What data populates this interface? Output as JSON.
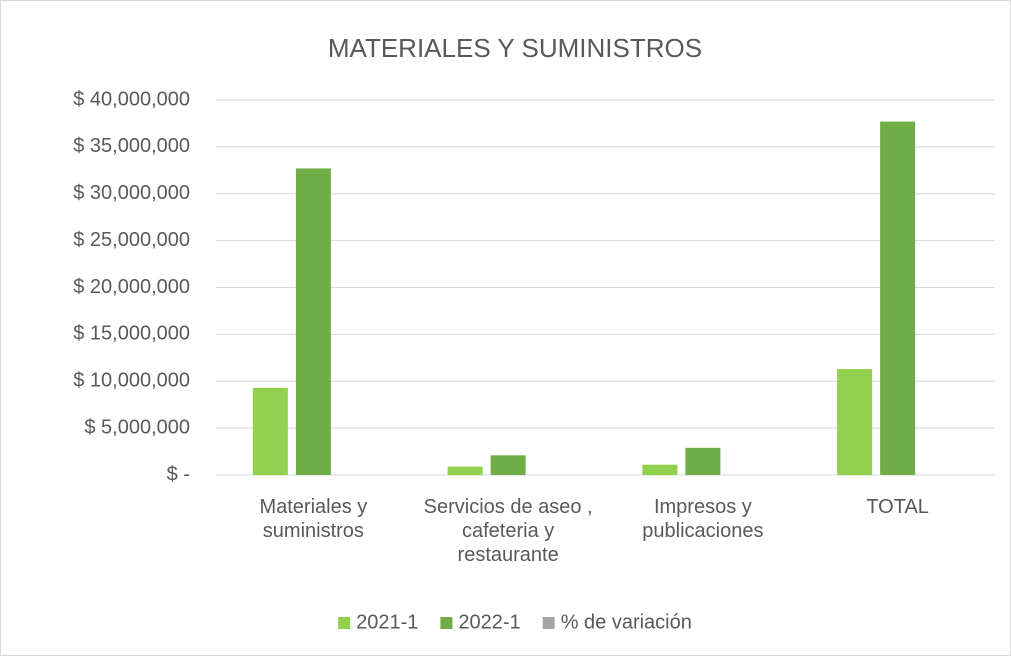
{
  "chart_data": {
    "type": "bar",
    "title": "MATERIALES Y SUMINISTROS",
    "categories": [
      "Materiales y suministros",
      "Servicios de aseo , cafeteria y restaurante",
      "Impresos y publicaciones",
      "TOTAL"
    ],
    "series": [
      {
        "name": "2021-1",
        "color": "#92d050",
        "values": [
          9300000,
          900000,
          1100000,
          11300000
        ]
      },
      {
        "name": "2022-1",
        "color": "#70ad47",
        "values": [
          32700000,
          2100000,
          2900000,
          37700000
        ]
      },
      {
        "name": "% de variación",
        "color": "#a5a5a5",
        "values": [
          0,
          0,
          0,
          0
        ]
      }
    ],
    "ylim": [
      0,
      40000000
    ],
    "yticks": [
      {
        "value": 0,
        "label": "$ -"
      },
      {
        "value": 5000000,
        "label": "$ 5,000,000"
      },
      {
        "value": 10000000,
        "label": "$ 10,000,000"
      },
      {
        "value": 15000000,
        "label": "$ 15,000,000"
      },
      {
        "value": 20000000,
        "label": "$ 20,000,000"
      },
      {
        "value": 25000000,
        "label": "$ 25,000,000"
      },
      {
        "value": 30000000,
        "label": "$ 30,000,000"
      },
      {
        "value": 35000000,
        "label": "$ 35,000,000"
      },
      {
        "value": 40000000,
        "label": "$ 40,000,000"
      }
    ],
    "grid": true,
    "legend": "bottom"
  }
}
